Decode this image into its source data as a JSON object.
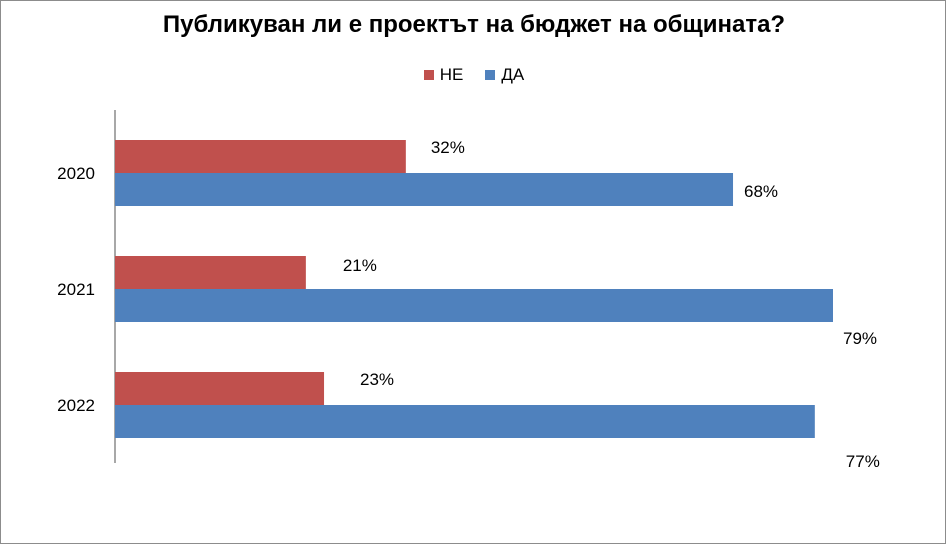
{
  "chart_data": {
    "type": "bar",
    "orientation": "horizontal",
    "title": "Публикуван ли е проектът на бюджет на общината?",
    "categories": [
      "2020",
      "2021",
      "2022"
    ],
    "series": [
      {
        "name": "НЕ",
        "color": "#c0504d",
        "values": [
          32,
          21,
          23
        ],
        "labels": [
          "32%",
          "21%",
          "23%"
        ]
      },
      {
        "name": "ДА",
        "color": "#4f81bd",
        "values": [
          68,
          79,
          77
        ],
        "labels": [
          "68%",
          "79%",
          "77%"
        ]
      }
    ],
    "xlim": [
      0,
      79
    ],
    "legend_position": "top",
    "grid": false
  }
}
